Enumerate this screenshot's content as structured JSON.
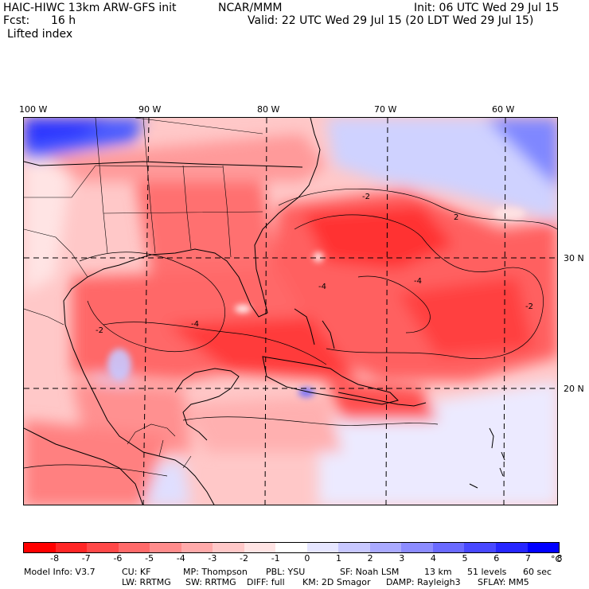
{
  "header": {
    "model": "HAIC-HIWC 13km ARW-GFS init",
    "org": "NCAR/MMM",
    "init": "Init: 06 UTC Wed 29 Jul 15",
    "fcst_label": "Fcst:",
    "fcst_value": "16 h",
    "valid": "Valid: 22 UTC Wed 29 Jul 15 (20 LDT Wed 29 Jul 15)",
    "field": "Lifted index"
  },
  "map": {
    "lon_labels": [
      "100 W",
      "90 W",
      "80 W",
      "70 W",
      "60 W"
    ],
    "lat_labels": [
      "30 N",
      "20 N"
    ],
    "contour_labels": [
      "-4",
      "-2",
      "-2",
      "-4",
      "2",
      "-2",
      "-4"
    ]
  },
  "colorbar": {
    "colors": [
      "#ff0000",
      "#ff2626",
      "#ff4848",
      "#ff6a6a",
      "#ff8c8c",
      "#ffaaaa",
      "#ffc8c8",
      "#ffe4e4",
      "#ffffff",
      "#e6e6ff",
      "#c8c8ff",
      "#aaaaff",
      "#8c8cff",
      "#6a6aff",
      "#4848ff",
      "#2626ff",
      "#0000ff"
    ],
    "ticks": [
      "-8",
      "-7",
      "-6",
      "-5",
      "-4",
      "-3",
      "-2",
      "-1",
      "0",
      "1",
      "2",
      "3",
      "4",
      "5",
      "6",
      "7",
      "8"
    ],
    "unit": "°C"
  },
  "footer": {
    "line1": [
      "Model Info: V3.7",
      "CU: KF",
      "MP: Thompson",
      "PBL: YSU",
      "SF: Noah LSM",
      "13 km",
      "51 levels",
      "60 sec"
    ],
    "line2": [
      "LW: RRTMG",
      "SW: RRTMG",
      "DIFF: full",
      "KM: 2D Smagor",
      "DAMP: Rayleigh3",
      "SFLAY: MM5"
    ]
  }
}
